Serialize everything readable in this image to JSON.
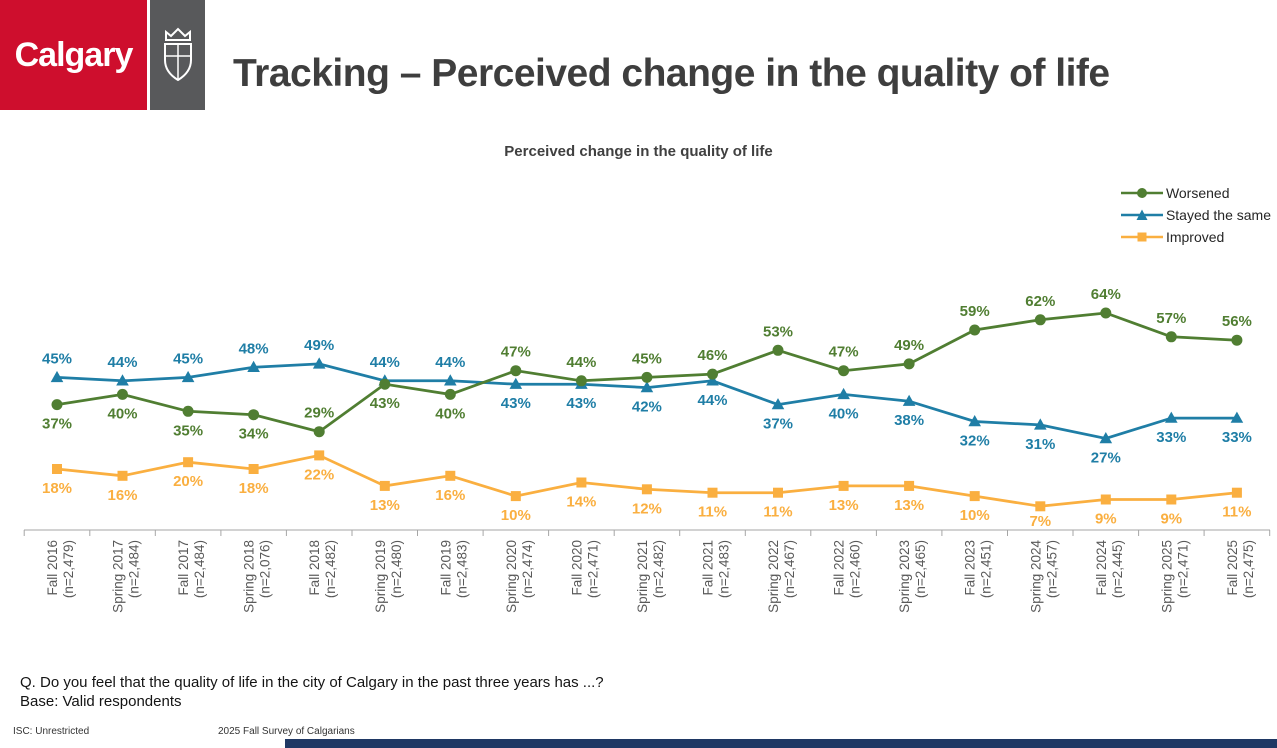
{
  "header": {
    "logo_text": "Calgary",
    "title": "Tracking – Perceived change in the quality of life"
  },
  "chart_data": {
    "type": "line",
    "title": "Perceived change in the quality of life",
    "value_suffix": "%",
    "ylim": [
      0,
      100
    ],
    "grid": false,
    "legend_position": "top-right",
    "categories": [
      {
        "wave": "Fall 2016",
        "n": "(n=2,479)"
      },
      {
        "wave": "Spring 2017",
        "n": "(n=2,484)"
      },
      {
        "wave": "Fall 2017",
        "n": "(n=2,484)"
      },
      {
        "wave": "Spring 2018",
        "n": "(n=2,076)"
      },
      {
        "wave": "Fall 2018",
        "n": "(n=2,482)"
      },
      {
        "wave": "Spring 2019",
        "n": "(n=2,480)"
      },
      {
        "wave": "Fall 2019",
        "n": "(n=2,483)"
      },
      {
        "wave": "Spring 2020",
        "n": "(n=2,474)"
      },
      {
        "wave": "Fall 2020",
        "n": "(n=2,471)"
      },
      {
        "wave": "Spring 2021",
        "n": "(n=2,482)"
      },
      {
        "wave": "Fall 2021",
        "n": "(n=2,483)"
      },
      {
        "wave": "Spring 2022",
        "n": "(n=2,467)"
      },
      {
        "wave": "Fall 2022",
        "n": "(n=2,460)"
      },
      {
        "wave": "Spring 2023",
        "n": "(n=2,465)"
      },
      {
        "wave": "Fall 2023",
        "n": "(n=2,451)"
      },
      {
        "wave": "Spring 2024",
        "n": "(n=2,457)"
      },
      {
        "wave": "Fall 2024",
        "n": "(n=2,445)"
      },
      {
        "wave": "Spring 2025",
        "n": "(n=2,471)"
      },
      {
        "wave": "Fall 2025",
        "n": "(n=2,475)"
      }
    ],
    "series": [
      {
        "name": "Worsened",
        "marker": "circle",
        "color": "#507E32",
        "values": [
          37,
          40,
          35,
          34,
          29,
          43,
          40,
          47,
          44,
          45,
          46,
          53,
          47,
          49,
          59,
          62,
          64,
          57,
          56
        ]
      },
      {
        "name": "Stayed the same",
        "marker": "triangle",
        "color": "#1F7EA6",
        "values": [
          45,
          44,
          45,
          48,
          49,
          44,
          44,
          43,
          43,
          42,
          44,
          37,
          40,
          38,
          32,
          31,
          27,
          33,
          33
        ]
      },
      {
        "name": "Improved",
        "marker": "square",
        "color": "#FAAF40",
        "values": [
          18,
          16,
          20,
          18,
          22,
          13,
          16,
          10,
          14,
          12,
          11,
          11,
          13,
          13,
          10,
          7,
          9,
          9,
          11
        ]
      }
    ]
  },
  "footer": {
    "question": "Q. Do you feel that the quality of life in the city of Calgary in the past three years has ...?",
    "base": "Base: Valid respondents",
    "classification": "ISC: Unrestricted",
    "source": "2025 Fall Survey of Calgarians"
  }
}
